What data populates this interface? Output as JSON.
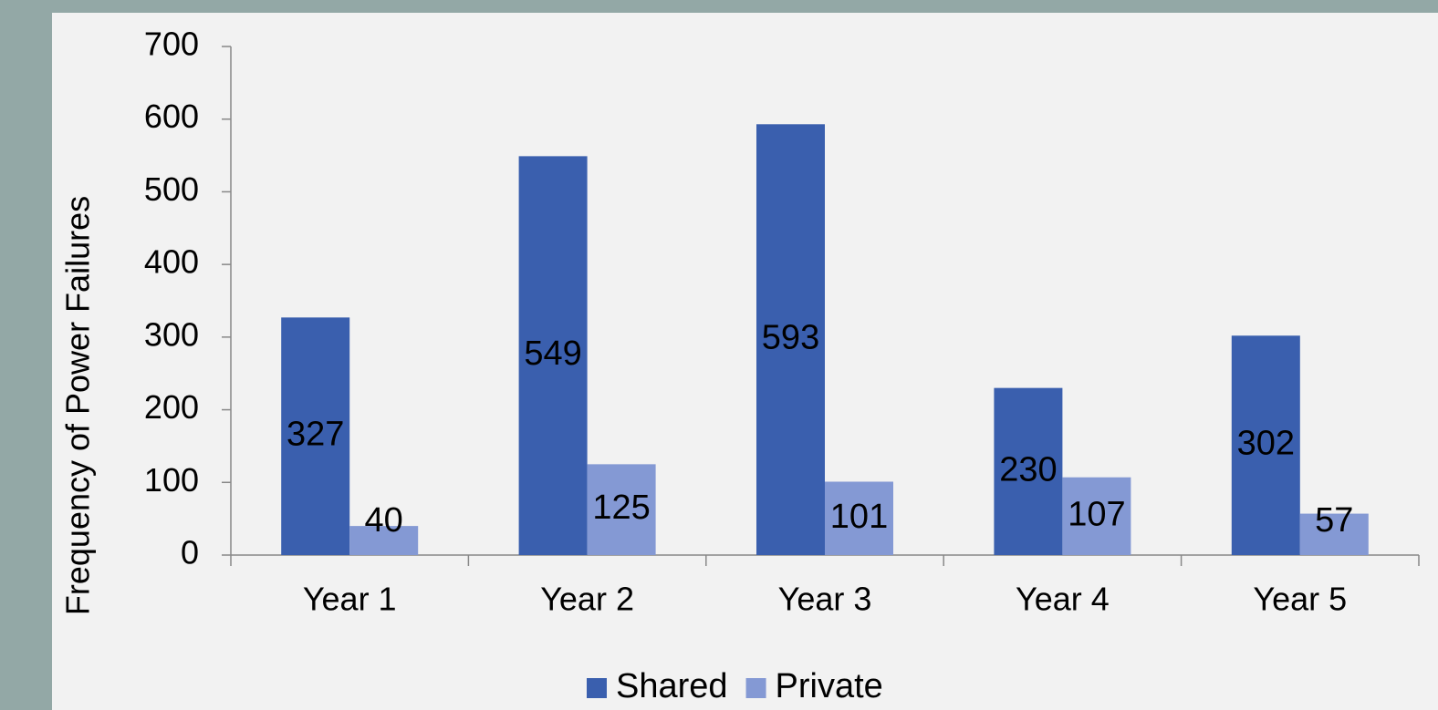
{
  "chart_data": {
    "type": "bar",
    "y_axis_label": "Frequency of Power Failures",
    "categories": [
      "Year 1",
      "Year 2",
      "Year 3",
      "Year 4",
      "Year 5"
    ],
    "series": [
      {
        "name": "Shared",
        "color": "#3a5fae",
        "values": [
          327,
          549,
          593,
          230,
          302
        ]
      },
      {
        "name": "Private",
        "color": "#8499d4",
        "values": [
          40,
          125,
          101,
          107,
          57
        ]
      }
    ],
    "ylim": [
      0,
      700
    ],
    "yticks": [
      0,
      100,
      200,
      300,
      400,
      500,
      600,
      700
    ],
    "grid": false,
    "legend": "bottom"
  }
}
